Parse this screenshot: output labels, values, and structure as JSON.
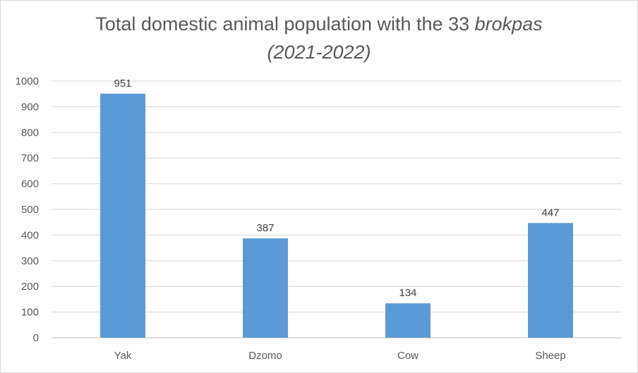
{
  "chart_data": {
    "type": "bar",
    "title_main": "Total domestic animal population with the 33",
    "title_italic_word": "brokpas",
    "title_line2": "(2021-2022)",
    "categories": [
      "Yak",
      "Dzomo",
      "Cow",
      "Sheep"
    ],
    "values": [
      951,
      387,
      134,
      447
    ],
    "data_labels": [
      "951",
      "387",
      "134",
      "447"
    ],
    "ylim": [
      0,
      1000
    ],
    "yticks": [
      0,
      100,
      200,
      300,
      400,
      500,
      600,
      700,
      800,
      900,
      1000
    ],
    "grid": true,
    "legend": "none",
    "xlabel": "",
    "ylabel": ""
  },
  "colors": {
    "bar": "#5b9bd5",
    "grid": "#d9d9d9",
    "axis": "#bfbfbf",
    "text": "#595959"
  }
}
